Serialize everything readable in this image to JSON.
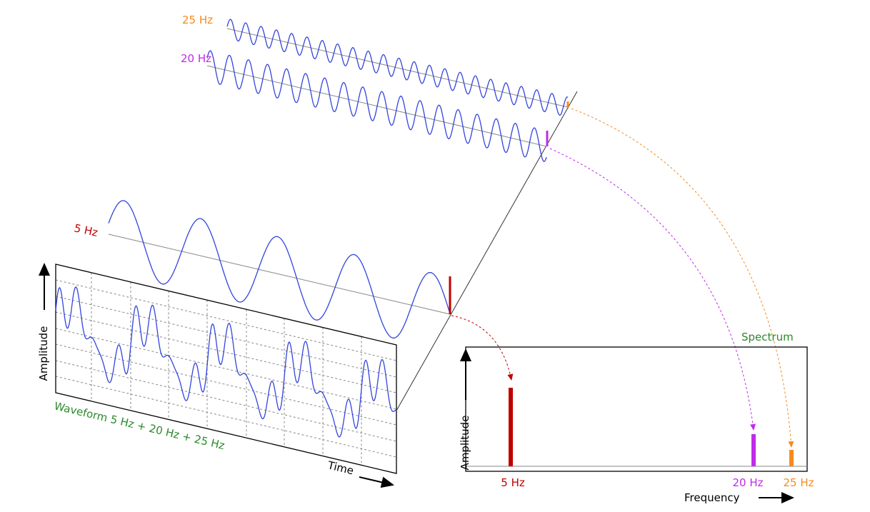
{
  "labels": {
    "freq_25": "25 Hz",
    "freq_20": "20 Hz",
    "freq_5": "5 Hz"
  },
  "waveform": {
    "y_label": "Amplitude",
    "title": "Waveform 5 Hz + 20 Hz + 25 Hz",
    "x_label": "Time"
  },
  "spectrum": {
    "title": "Spectrum",
    "y_label": "Amplitude",
    "x_label": "Frequency",
    "peaks": [
      "5 Hz",
      "20 Hz",
      "25 Hz"
    ]
  }
}
